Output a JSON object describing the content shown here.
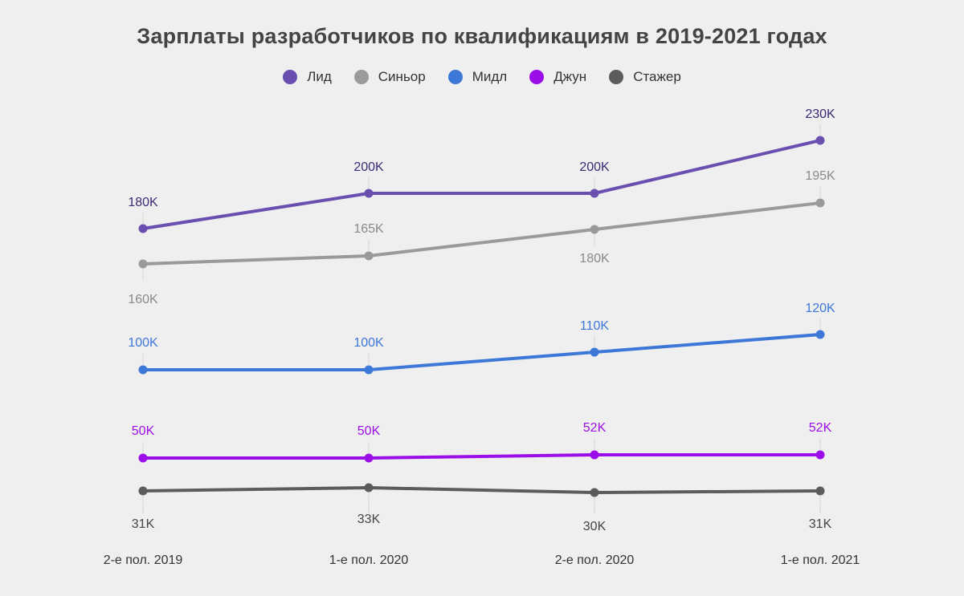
{
  "chart_data": {
    "type": "line",
    "title": "Зарплаты разработчиков по квалификациям в 2019-2021 годах",
    "categories": [
      "2-е пол. 2019",
      "1-е пол. 2020",
      "2-е пол. 2020",
      "1-е пол. 2021"
    ],
    "xlabel": "",
    "ylabel": "",
    "series": [
      {
        "name": "Лид",
        "color": "#6a4fb0",
        "label_color": "#3d2a75",
        "values": [
          180,
          200,
          200,
          230
        ],
        "labels": [
          "180K",
          "200K",
          "200K",
          "230K"
        ],
        "label_pos": [
          "above",
          "above",
          "above",
          "above"
        ]
      },
      {
        "name": "Синьор",
        "color": "#9a9a9a",
        "label_color": "#8a8a8a",
        "values": [
          160,
          165,
          180,
          195
        ],
        "labels": [
          "160K",
          "165K",
          "180K",
          "195K"
        ],
        "label_pos": [
          "below",
          "above",
          "below",
          "above"
        ]
      },
      {
        "name": "Мидл",
        "color": "#3d78d8",
        "label_color": "#3d78d8",
        "values": [
          100,
          100,
          110,
          120
        ],
        "labels": [
          "100K",
          "100K",
          "110K",
          "120K"
        ],
        "label_pos": [
          "above",
          "above",
          "above",
          "above"
        ]
      },
      {
        "name": "Джун",
        "color": "#9b0ee8",
        "label_color": "#9b0ee8",
        "values": [
          50,
          50,
          52,
          52
        ],
        "labels": [
          "50K",
          "50K",
          "52K",
          "52K"
        ],
        "label_pos": [
          "above",
          "above",
          "above",
          "above"
        ]
      },
      {
        "name": "Стажер",
        "color": "#5c5c5c",
        "label_color": "#444444",
        "values": [
          31,
          33,
          30,
          31
        ],
        "labels": [
          "31K",
          "33K",
          "30K",
          "31K"
        ],
        "label_pos": [
          "below",
          "below",
          "below",
          "below"
        ]
      }
    ],
    "legend": "top-center",
    "grid": false
  }
}
